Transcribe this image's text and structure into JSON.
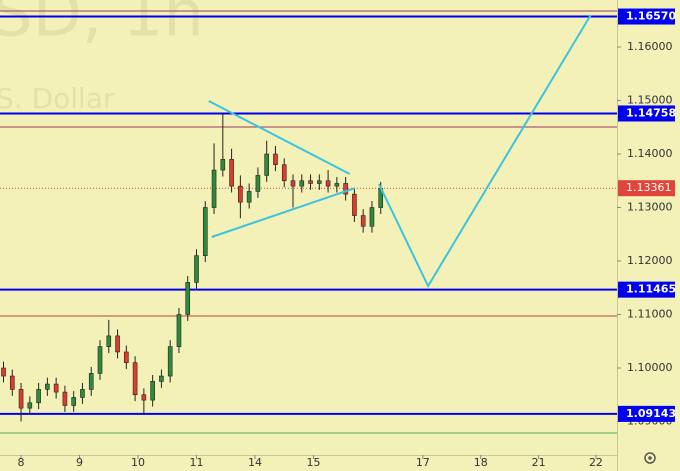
{
  "chart_data": {
    "type": "candlestick",
    "watermark": [
      "SD, 1h",
      "S. Dollar"
    ],
    "background": "#f3f1b8",
    "up_color": "#2e8b3a",
    "down_color": "#e03a2f",
    "x": [
      -0.3,
      -0.15,
      0,
      0.15,
      0.3,
      0.45,
      0.6,
      0.75,
      0.9,
      1.05,
      1.2,
      1.35,
      1.5,
      1.65,
      1.8,
      1.95,
      2.1,
      2.25,
      2.4,
      2.55,
      2.7,
      2.85,
      3.0,
      3.15,
      3.3,
      3.45,
      3.6,
      3.75,
      3.9,
      4.05,
      4.2,
      4.35,
      4.5,
      4.65,
      4.8,
      4.95,
      5.1,
      5.25,
      5.4,
      5.55,
      5.7,
      5.85,
      6.0,
      6.15
    ],
    "open": [
      1.1,
      1.0985,
      1.096,
      1.0925,
      1.0935,
      1.096,
      1.097,
      1.0955,
      1.093,
      1.0945,
      1.096,
      1.099,
      1.104,
      1.106,
      1.103,
      1.101,
      1.095,
      1.094,
      1.0975,
      1.0985,
      1.104,
      1.11,
      1.116,
      1.121,
      1.13,
      1.137,
      1.139,
      1.134,
      1.131,
      1.133,
      1.136,
      1.14,
      1.138,
      1.135,
      1.134,
      1.135,
      1.1345,
      1.135,
      1.134,
      1.1345,
      1.1325,
      1.1285,
      1.1265,
      1.13
    ],
    "high": [
      1.1012,
      1.0997,
      1.0972,
      1.0947,
      1.0972,
      1.0982,
      1.0982,
      1.0967,
      1.0957,
      1.0972,
      1.1002,
      1.1052,
      1.109,
      1.1072,
      1.1042,
      1.1022,
      1.0962,
      1.0987,
      1.0997,
      1.1052,
      1.1112,
      1.1172,
      1.1222,
      1.1312,
      1.142,
      1.1475,
      1.141,
      1.136,
      1.1345,
      1.1375,
      1.1425,
      1.1415,
      1.1392,
      1.1362,
      1.1362,
      1.1362,
      1.1362,
      1.137,
      1.1357,
      1.1357,
      1.1337,
      1.1297,
      1.1312,
      1.1348
    ],
    "low": [
      1.0973,
      1.0948,
      1.09,
      1.0913,
      1.0923,
      1.0948,
      1.0943,
      1.0918,
      1.0918,
      1.0933,
      1.0948,
      1.0978,
      1.1028,
      1.1018,
      1.0998,
      1.0938,
      1.0915,
      1.0928,
      1.0963,
      1.0973,
      1.1028,
      1.1088,
      1.1148,
      1.1198,
      1.1288,
      1.1358,
      1.1328,
      1.128,
      1.1298,
      1.1318,
      1.1348,
      1.1368,
      1.1338,
      1.13,
      1.1328,
      1.1333,
      1.1333,
      1.1328,
      1.1328,
      1.1313,
      1.1273,
      1.1253,
      1.1253,
      1.1288
    ],
    "close": [
      1.0985,
      1.096,
      1.0925,
      1.0935,
      1.096,
      1.097,
      1.0955,
      1.093,
      1.0945,
      1.096,
      1.099,
      1.104,
      1.106,
      1.103,
      1.101,
      1.095,
      1.094,
      1.0975,
      1.0985,
      1.104,
      1.11,
      1.116,
      1.121,
      1.13,
      1.137,
      1.139,
      1.134,
      1.131,
      1.133,
      1.136,
      1.14,
      1.138,
      1.135,
      1.134,
      1.135,
      1.1345,
      1.135,
      1.134,
      1.1345,
      1.1325,
      1.1285,
      1.1265,
      1.13,
      1.1336
    ],
    "xlim": [
      -0.36,
      10.19
    ],
    "ylim": [
      1.08374,
      1.16879
    ],
    "xticks": [
      {
        "value": 0,
        "label": "8"
      },
      {
        "value": 1,
        "label": "9"
      },
      {
        "value": 2,
        "label": "10"
      },
      {
        "value": 3,
        "label": "11"
      },
      {
        "value": 4,
        "label": "14"
      },
      {
        "value": 5,
        "label": "15"
      },
      {
        "value": 6.87,
        "label": "17"
      },
      {
        "value": 7.86,
        "label": "18"
      },
      {
        "value": 8.85,
        "label": "21"
      },
      {
        "value": 9.83,
        "label": "22"
      }
    ],
    "yticks": [
      {
        "value": 1.16,
        "label": "1.16000"
      },
      {
        "value": 1.15,
        "label": "1.15000"
      },
      {
        "value": 1.14,
        "label": "1.14000"
      },
      {
        "value": 1.13,
        "label": "1.13000"
      },
      {
        "value": 1.12,
        "label": "1.12000"
      },
      {
        "value": 1.11,
        "label": "1.11000"
      },
      {
        "value": 1.1,
        "label": "1.10000"
      },
      {
        "value": 1.09,
        "label": "1.09000"
      }
    ],
    "levels": [
      {
        "value": 1.16673,
        "color": "#9b3a5a"
      },
      {
        "value": 1.1657,
        "label": "1.16570",
        "color": "#0000ee"
      },
      {
        "value": 1.14758,
        "label": "1.14758",
        "color": "#0000ee"
      },
      {
        "value": 1.14505,
        "color": "#9b3a5a"
      },
      {
        "value": 1.11465,
        "label": "1.11465",
        "color": "#0000ee"
      },
      {
        "value": 1.10972,
        "color": "#b04a3a"
      },
      {
        "value": 1.09143,
        "label": "1.09143",
        "color": "#0000ee"
      },
      {
        "value": 1.08785,
        "color": "#4caf50"
      }
    ],
    "last_price": {
      "value": 1.13361,
      "label": "1.13361",
      "color": "#e0443a"
    },
    "drawings": [
      {
        "color": "#3cc3e0",
        "x": [
          3.21,
          5.62
        ],
        "y": [
          1.14991,
          1.13626
        ]
      },
      {
        "color": "#3cc3e0",
        "x": [
          3.26,
          5.71
        ],
        "y": [
          1.12449,
          1.13364
        ]
      },
      {
        "color": "#3cc3e0",
        "x": [
          6.12,
          6.96,
          9.74
        ],
        "y": [
          1.13439,
          1.11533,
          1.16598
        ]
      }
    ]
  }
}
